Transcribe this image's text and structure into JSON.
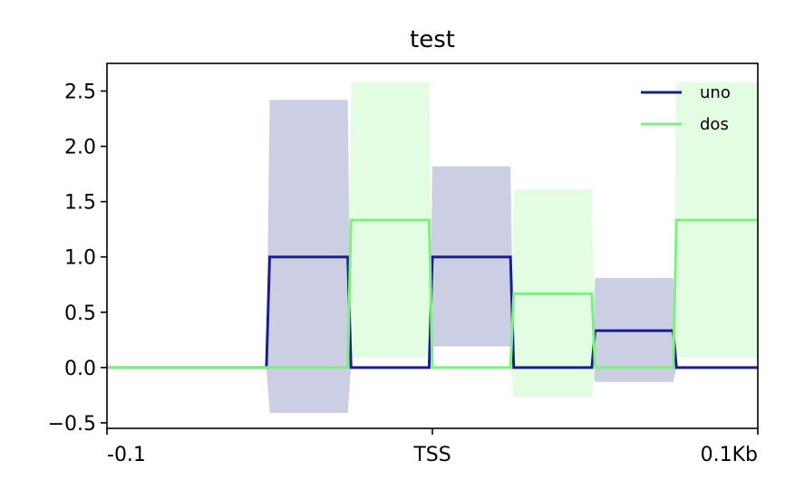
{
  "chart_data": {
    "type": "line",
    "title": "test",
    "xlabel": "",
    "ylabel": "",
    "xlim": [
      -0.1,
      0.1
    ],
    "ylim": [
      -0.55,
      2.75
    ],
    "x_ticks": [
      {
        "value": -0.1,
        "label": "-0.1"
      },
      {
        "value": 0.0,
        "label": "TSS"
      },
      {
        "value": 0.1,
        "label": "0.1Kb"
      }
    ],
    "y_ticks": [
      {
        "value": -0.5,
        "label": "−0.5"
      },
      {
        "value": 0.0,
        "label": "0.0"
      },
      {
        "value": 0.5,
        "label": "0.5"
      },
      {
        "value": 1.0,
        "label": "1.0"
      },
      {
        "value": 1.5,
        "label": "1.5"
      },
      {
        "value": 2.0,
        "label": "2.0"
      },
      {
        "value": 2.5,
        "label": "2.5"
      }
    ],
    "grid": false,
    "legend_position": "top-right",
    "series": [
      {
        "name": "uno",
        "color": "#1a1f8c",
        "band_color": "#cccee4",
        "x": [
          -0.1,
          -0.051,
          -0.05,
          -0.026,
          -0.025,
          -0.001,
          0.0,
          0.024,
          0.025,
          0.049,
          0.05,
          0.074,
          0.075,
          0.1
        ],
        "y": [
          0,
          0,
          1.0,
          1.0,
          0,
          0,
          1.0,
          1.0,
          0,
          0,
          0.333,
          0.333,
          0,
          0
        ],
        "upper": [
          0,
          0,
          2.42,
          2.42,
          0,
          0,
          1.82,
          1.82,
          0,
          0,
          0.81,
          0.81,
          0,
          0
        ],
        "lower": [
          0,
          0,
          -0.41,
          -0.41,
          0,
          0,
          0.19,
          0.19,
          0,
          0,
          -0.13,
          -0.13,
          0,
          0
        ]
      },
      {
        "name": "dos",
        "color": "#7ff07f",
        "band_color": "#e2fde2",
        "x": [
          -0.1,
          -0.026,
          -0.025,
          -0.001,
          0.0,
          0.024,
          0.025,
          0.049,
          0.05,
          0.074,
          0.075,
          0.1
        ],
        "y": [
          0,
          0,
          1.333,
          1.333,
          0,
          0,
          0.667,
          0.667,
          0,
          0,
          1.333,
          1.333
        ],
        "upper": [
          0,
          0,
          2.58,
          2.58,
          0,
          0,
          1.61,
          1.61,
          0,
          0,
          2.58,
          2.58
        ],
        "lower": [
          0,
          0,
          0.09,
          0.09,
          0,
          0,
          -0.27,
          -0.27,
          0,
          0,
          0.09,
          0.09
        ]
      }
    ]
  }
}
